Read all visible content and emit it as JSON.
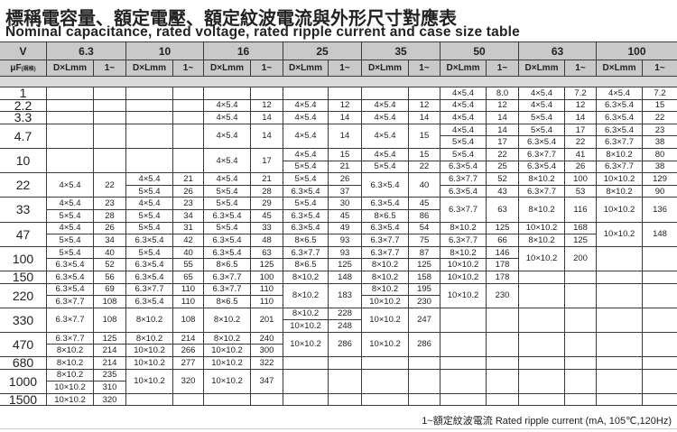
{
  "title_zh": "標稱電容量、額定電壓、額定紋波電流與外形尺寸對應表",
  "title_en": "Nominal capacitance, rated voltage, rated ripple current and case size table",
  "header": {
    "v_label": "V",
    "uf_label": "μF",
    "uf_sub": "(規格)",
    "size_label": "D×Lmm",
    "current_label": "1~",
    "voltages": [
      "6.3",
      "10",
      "16",
      "25",
      "35",
      "50",
      "63",
      "100"
    ]
  },
  "rows": [
    {
      "cap": "1",
      "sub": 1,
      "cells": [
        [],
        [],
        [],
        [],
        [],
        [
          [
            "4×5.4",
            "8.0"
          ]
        ],
        [
          [
            "4×5.4",
            "7.2"
          ]
        ],
        [
          [
            "4×5.4",
            "7.2"
          ]
        ]
      ]
    },
    {
      "cap": "2.2",
      "sub": 1,
      "cells": [
        [],
        [],
        [
          [
            "4×5.4",
            "12"
          ]
        ],
        [
          [
            "4×5.4",
            "12"
          ]
        ],
        [
          [
            "4×5.4",
            "12"
          ]
        ],
        [
          [
            "4×5.4",
            "12"
          ]
        ],
        [
          [
            "4×5.4",
            "12"
          ]
        ],
        [
          [
            "6.3×5.4",
            "15"
          ]
        ]
      ]
    },
    {
      "cap": "3.3",
      "sub": 1,
      "cells": [
        [],
        [],
        [
          [
            "4×5.4",
            "14"
          ]
        ],
        [
          [
            "4×5.4",
            "14"
          ]
        ],
        [
          [
            "4×5.4",
            "14"
          ]
        ],
        [
          [
            "4×5.4",
            "14"
          ]
        ],
        [
          [
            "5×5.4",
            "14"
          ]
        ],
        [
          [
            "6.3×5.4",
            "22"
          ]
        ]
      ]
    },
    {
      "cap": "4.7",
      "sub": 2,
      "cells": [
        [],
        [],
        [
          [
            "4×5.4",
            "14"
          ]
        ],
        [
          [
            "4×5.4",
            "14"
          ]
        ],
        [
          [
            "4×5.4",
            "15"
          ]
        ],
        [
          [
            "4×5.4",
            "14"
          ],
          [
            "5×5.4",
            "17"
          ]
        ],
        [
          [
            "5×5.4",
            "17"
          ],
          [
            "6.3×5.4",
            "22"
          ]
        ],
        [
          [
            "6.3×5.4",
            "23"
          ],
          [
            "6.3×7.7",
            "38"
          ]
        ]
      ]
    },
    {
      "cap": "10",
      "sub": 2,
      "cells": [
        [],
        [],
        [
          [
            "4×5.4",
            "17"
          ]
        ],
        [
          [
            "4×5.4",
            "15"
          ],
          [
            "5×5.4",
            "21"
          ]
        ],
        [
          [
            "4×5.4",
            "15"
          ],
          [
            "5×5.4",
            "22"
          ]
        ],
        [
          [
            "5×5.4",
            "22"
          ],
          [
            "6.3×5.4",
            "25"
          ]
        ],
        [
          [
            "6.3×7.7",
            "41"
          ],
          [
            "6.3×5.4",
            "26"
          ]
        ],
        [
          [
            "8×10.2",
            "80"
          ],
          [
            "6.3×7.7",
            "38"
          ]
        ]
      ]
    },
    {
      "cap": "22",
      "sub": 2,
      "cells": [
        [
          [
            "4×5.4",
            "22"
          ]
        ],
        [
          [
            "4×5.4",
            "21"
          ],
          [
            "5×5.4",
            "26"
          ]
        ],
        [
          [
            "4×5.4",
            "21"
          ],
          [
            "5×5.4",
            "28"
          ]
        ],
        [
          [
            "5×5.4",
            "26"
          ],
          [
            "6.3×5.4",
            "37"
          ]
        ],
        [
          [
            "6.3×5.4",
            "40"
          ]
        ],
        [
          [
            "6.3×7.7",
            "52"
          ],
          [
            "6.3×5.4",
            "43"
          ]
        ],
        [
          [
            "8×10.2",
            "100"
          ],
          [
            "6.3×7.7",
            "53"
          ]
        ],
        [
          [
            "10×10.2",
            "129"
          ],
          [
            "8×10.2",
            "90"
          ]
        ]
      ]
    },
    {
      "cap": "33",
      "sub": 2,
      "cells": [
        [
          [
            "4×5.4",
            "23"
          ],
          [
            "5×5.4",
            "28"
          ]
        ],
        [
          [
            "4×5.4",
            "23"
          ],
          [
            "5×5.4",
            "34"
          ]
        ],
        [
          [
            "5×5.4",
            "29"
          ],
          [
            "6.3×5.4",
            "45"
          ]
        ],
        [
          [
            "5×5.4",
            "30"
          ],
          [
            "6.3×5.4",
            "45"
          ]
        ],
        [
          [
            "6.3×5.4",
            "45"
          ],
          [
            "8×6.5",
            "86"
          ]
        ],
        [
          [
            "6.3×7.7",
            "63"
          ]
        ],
        [
          [
            "8×10.2",
            "116"
          ]
        ],
        [
          [
            "10×10.2",
            "136"
          ]
        ]
      ]
    },
    {
      "cap": "47",
      "sub": 2,
      "cells": [
        [
          [
            "4×5.4",
            "26"
          ],
          [
            "5×5.4",
            "34"
          ]
        ],
        [
          [
            "5×5.4",
            "31"
          ],
          [
            "6.3×5.4",
            "42"
          ]
        ],
        [
          [
            "5×5.4",
            "33"
          ],
          [
            "6.3×5.4",
            "48"
          ]
        ],
        [
          [
            "6.3×5.4",
            "49"
          ],
          [
            "8×6.5",
            "93"
          ]
        ],
        [
          [
            "6.3×5.4",
            "54"
          ],
          [
            "6.3×7.7",
            "75"
          ]
        ],
        [
          [
            "8×10.2",
            "125"
          ],
          [
            "6.3×7.7",
            "66"
          ]
        ],
        [
          [
            "10×10.2",
            "168"
          ],
          [
            "8×10.2",
            "125"
          ]
        ],
        [
          [
            "10×10.2",
            "148"
          ]
        ]
      ]
    },
    {
      "cap": "100",
      "sub": 2,
      "cells": [
        [
          [
            "5×5.4",
            "40"
          ],
          [
            "6.3×5.4",
            "52"
          ]
        ],
        [
          [
            "5×5.4",
            "40"
          ],
          [
            "6.3×5.4",
            "55"
          ]
        ],
        [
          [
            "6.3×5.4",
            "63"
          ],
          [
            "8×6.5",
            "125"
          ]
        ],
        [
          [
            "6.3×7.7",
            "93"
          ],
          [
            "8×6.5",
            "125"
          ]
        ],
        [
          [
            "6.3×7.7",
            "87"
          ],
          [
            "8×10.2",
            "125"
          ]
        ],
        [
          [
            "8×10.2",
            "146"
          ],
          [
            "10×10.2",
            "178"
          ]
        ],
        [
          [
            "10×10.2",
            "200"
          ]
        ],
        []
      ]
    },
    {
      "cap": "150",
      "sub": 1,
      "cells": [
        [
          [
            "6.3×5.4",
            "56"
          ]
        ],
        [
          [
            "6.3×5.4",
            "65"
          ]
        ],
        [
          [
            "6.3×7.7",
            "100"
          ]
        ],
        [
          [
            "8×10.2",
            "148"
          ]
        ],
        [
          [
            "8×10.2",
            "158"
          ]
        ],
        [
          [
            "10×10.2",
            "178"
          ]
        ],
        [],
        []
      ]
    },
    {
      "cap": "220",
      "sub": 2,
      "cells": [
        [
          [
            "6.3×5.4",
            "69"
          ],
          [
            "6.3×7.7",
            "108"
          ]
        ],
        [
          [
            "6.3×7.7",
            "110"
          ],
          [
            "6.3×5.4",
            "110"
          ]
        ],
        [
          [
            "6.3×7.7",
            "110"
          ],
          [
            "8×6.5",
            "110"
          ]
        ],
        [
          [
            "8×10.2",
            "183"
          ]
        ],
        [
          [
            "8×10.2",
            "195"
          ],
          [
            "10×10.2",
            "230"
          ]
        ],
        [
          [
            "10×10.2",
            "230"
          ]
        ],
        [],
        []
      ]
    },
    {
      "cap": "330",
      "sub": 2,
      "cells": [
        [
          [
            "6.3×7.7",
            "108"
          ]
        ],
        [
          [
            "8×10.2",
            "108"
          ]
        ],
        [
          [
            "8×10.2",
            "201"
          ]
        ],
        [
          [
            "8×10.2",
            "228"
          ],
          [
            "10×10.2",
            "248"
          ]
        ],
        [
          [
            "10×10.2",
            "247"
          ]
        ],
        [],
        [],
        []
      ]
    },
    {
      "cap": "470",
      "sub": 2,
      "cells": [
        [
          [
            "6.3×7.7",
            "125"
          ],
          [
            "8×10.2",
            "214"
          ]
        ],
        [
          [
            "8×10.2",
            "214"
          ],
          [
            "10×10.2",
            "266"
          ]
        ],
        [
          [
            "8×10.2",
            "240"
          ],
          [
            "10×10.2",
            "300"
          ]
        ],
        [
          [
            "10×10.2",
            "286"
          ]
        ],
        [
          [
            "10×10.2",
            "286"
          ]
        ],
        [],
        [],
        []
      ]
    },
    {
      "cap": "680",
      "sub": 1,
      "cells": [
        [
          [
            "8×10.2",
            "214"
          ]
        ],
        [
          [
            "10×10.2",
            "277"
          ]
        ],
        [
          [
            "10×10.2",
            "322"
          ]
        ],
        [],
        [],
        [],
        [],
        []
      ]
    },
    {
      "cap": "1000",
      "sub": 2,
      "cells": [
        [
          [
            "8×10.2",
            "235"
          ],
          [
            "10×10.2",
            "310"
          ]
        ],
        [
          [
            "10×10.2",
            "320"
          ]
        ],
        [
          [
            "10×10.2",
            "347"
          ]
        ],
        [],
        [],
        [],
        [],
        []
      ]
    },
    {
      "cap": "1500",
      "sub": 1,
      "cells": [
        [
          [
            "10×10.2",
            "320"
          ]
        ],
        [],
        [],
        [],
        [],
        [],
        [],
        []
      ]
    }
  ],
  "footer": "1~額定紋波電流 Rated ripple current (mA, 105℃,120Hz)"
}
